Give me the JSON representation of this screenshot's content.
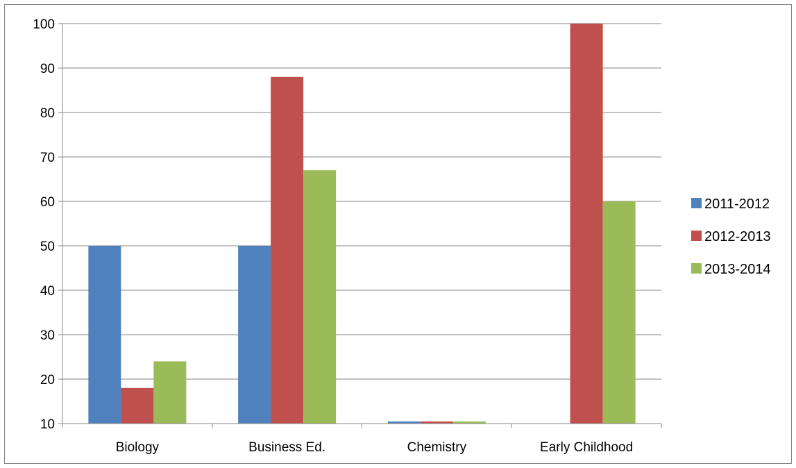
{
  "chart_data": {
    "type": "bar",
    "categories": [
      "Biology",
      "Business Ed.",
      "Chemistry",
      "Early Childhood"
    ],
    "series": [
      {
        "name": "2011-2012",
        "values": [
          50,
          50,
          10,
          null
        ],
        "color": "#4F81BD"
      },
      {
        "name": "2012-2013",
        "values": [
          18,
          88,
          10,
          100
        ],
        "color": "#C0504D"
      },
      {
        "name": "2013-2014",
        "values": [
          24,
          67,
          10,
          60
        ],
        "color": "#9BBB59"
      }
    ],
    "title": "",
    "xlabel": "",
    "ylabel": "",
    "ylim": [
      10,
      100
    ],
    "yticks": [
      10,
      20,
      30,
      40,
      50,
      60,
      70,
      80,
      90,
      100
    ],
    "grid": true,
    "legend_position": "right"
  }
}
